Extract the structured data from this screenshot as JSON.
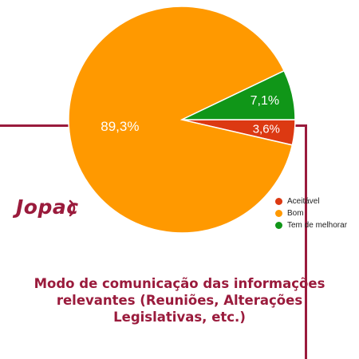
{
  "logo_text": "Jopac",
  "caption_lines": [
    "Modo de comunicação das informações",
    "relevantes (Reuniões, Alterações",
    "Legislativas, etc.)"
  ],
  "colors": {
    "brand": "#9a1b3c"
  },
  "chart_data": {
    "type": "pie",
    "title": "",
    "slices": [
      {
        "name": "Aceitável",
        "value": 3.6,
        "label": "3,6%",
        "color": "#dc3912"
      },
      {
        "name": "Bom",
        "value": 89.3,
        "label": "89,3%",
        "color": "#ff9900"
      },
      {
        "name": "Tem de melhorar",
        "value": 7.1,
        "label": "7,1%",
        "color": "#109618"
      }
    ],
    "legend_position": "right"
  }
}
